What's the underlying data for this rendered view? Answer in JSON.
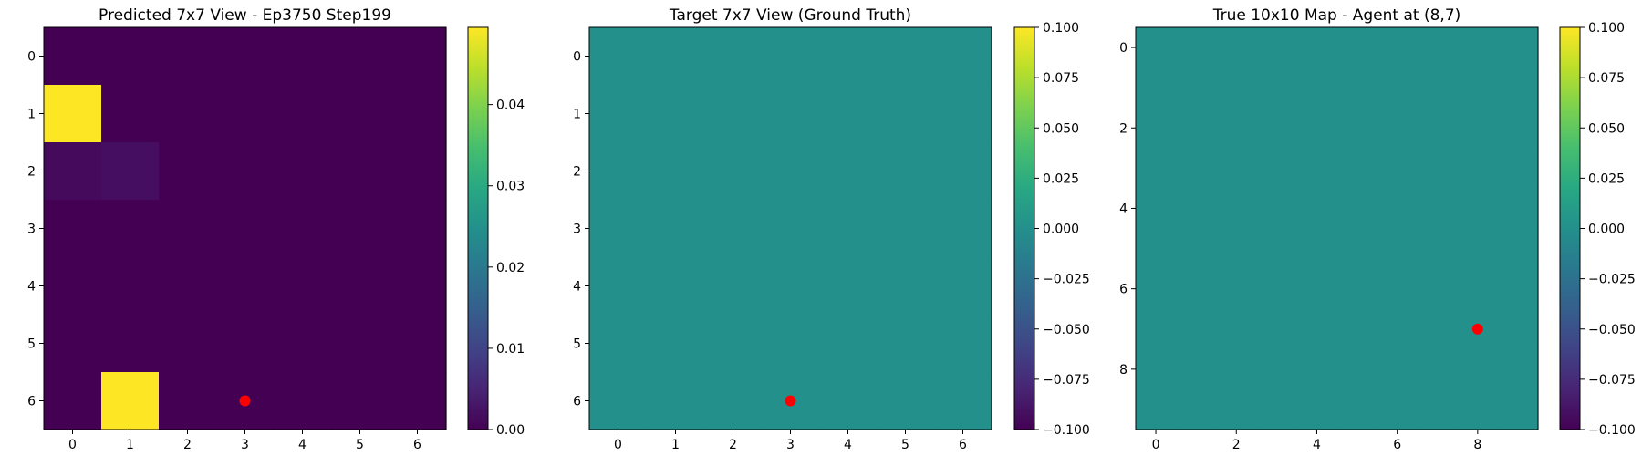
{
  "chart_data": [
    {
      "type": "heatmap",
      "title": "Predicted 7x7 View - Ep3750 Step199",
      "rows": 7,
      "cols": 7,
      "x_ticks": [
        "0",
        "1",
        "2",
        "3",
        "4",
        "5",
        "6"
      ],
      "y_ticks": [
        "0",
        "1",
        "2",
        "3",
        "4",
        "5",
        "6"
      ],
      "values": [
        [
          0,
          0,
          0,
          0,
          0,
          0,
          0
        ],
        [
          0.0495,
          0,
          0,
          0,
          0,
          0,
          0
        ],
        [
          0.0012,
          0.0018,
          0,
          0,
          0,
          0,
          0
        ],
        [
          0,
          0,
          0,
          0,
          0,
          0,
          0
        ],
        [
          0,
          0,
          0,
          0,
          0,
          0,
          0
        ],
        [
          0,
          0,
          0,
          0,
          0,
          0,
          0
        ],
        [
          0,
          0.0495,
          0,
          0,
          0,
          0,
          0
        ]
      ],
      "vmin": 0.0,
      "vmax": 0.0495,
      "colorbar_ticks": [
        "0.00",
        "0.01",
        "0.02",
        "0.03",
        "0.04"
      ],
      "colorbar_tick_values": [
        0.0,
        0.01,
        0.02,
        0.03,
        0.04
      ],
      "marker": {
        "x": 3,
        "y": 6,
        "color": "#ff0000"
      },
      "colormap": "viridis"
    },
    {
      "type": "heatmap",
      "title": "Target 7x7 View (Ground Truth)",
      "rows": 7,
      "cols": 7,
      "x_ticks": [
        "0",
        "1",
        "2",
        "3",
        "4",
        "5",
        "6"
      ],
      "y_ticks": [
        "0",
        "1",
        "2",
        "3",
        "4",
        "5",
        "6"
      ],
      "fill_value": 0.0,
      "vmin": -0.1,
      "vmax": 0.1,
      "colorbar_ticks": [
        "0.100",
        "0.075",
        "0.050",
        "0.025",
        "0.000",
        "−0.025",
        "−0.050",
        "−0.075",
        "−0.100"
      ],
      "colorbar_tick_values": [
        0.1,
        0.075,
        0.05,
        0.025,
        0.0,
        -0.025,
        -0.05,
        -0.075,
        -0.1
      ],
      "marker": {
        "x": 3,
        "y": 6,
        "color": "#ff0000"
      },
      "colormap": "viridis"
    },
    {
      "type": "heatmap",
      "title": "True 10x10 Map - Agent at (8,7)",
      "rows": 10,
      "cols": 10,
      "x_ticks": [
        "0",
        "2",
        "4",
        "6",
        "8"
      ],
      "x_tick_values": [
        0,
        2,
        4,
        6,
        8
      ],
      "y_ticks": [
        "0",
        "2",
        "4",
        "6",
        "8"
      ],
      "y_tick_values": [
        0,
        2,
        4,
        6,
        8
      ],
      "fill_value": 0.0,
      "vmin": -0.1,
      "vmax": 0.1,
      "colorbar_ticks": [
        "0.100",
        "0.075",
        "0.050",
        "0.025",
        "0.000",
        "−0.025",
        "−0.050",
        "−0.075",
        "−0.100"
      ],
      "colorbar_tick_values": [
        0.1,
        0.075,
        0.05,
        0.025,
        0.0,
        -0.025,
        -0.05,
        -0.075,
        -0.1
      ],
      "marker": {
        "x": 8,
        "y": 7,
        "color": "#ff0000"
      },
      "colormap": "viridis"
    }
  ]
}
